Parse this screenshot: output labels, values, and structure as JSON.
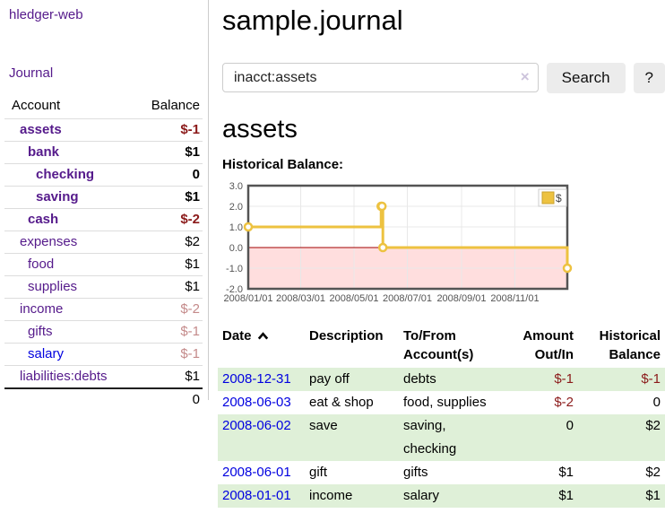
{
  "app": {
    "brand": "hledger-web",
    "nav_journal": "Journal"
  },
  "sidebar": {
    "columns": {
      "account": "Account",
      "balance": "Balance"
    },
    "accounts": [
      {
        "name": "assets",
        "balance": "$-1",
        "indent": 1,
        "bold": true,
        "negative": true,
        "dimmed": false
      },
      {
        "name": "bank",
        "balance": "$1",
        "indent": 2,
        "bold": true,
        "negative": false,
        "dimmed": false
      },
      {
        "name": "checking",
        "balance": "0",
        "indent": 3,
        "bold": true,
        "negative": false,
        "dimmed": false
      },
      {
        "name": "saving",
        "balance": "$1",
        "indent": 3,
        "bold": true,
        "negative": false,
        "dimmed": false
      },
      {
        "name": "cash",
        "balance": "$-2",
        "indent": 2,
        "bold": true,
        "negative": true,
        "dimmed": false
      },
      {
        "name": "expenses",
        "balance": "$2",
        "indent": 1,
        "bold": false,
        "negative": false,
        "dimmed": false
      },
      {
        "name": "food",
        "balance": "$1",
        "indent": 2,
        "bold": false,
        "negative": false,
        "dimmed": false
      },
      {
        "name": "supplies",
        "balance": "$1",
        "indent": 2,
        "bold": false,
        "negative": false,
        "dimmed": false
      },
      {
        "name": "income",
        "balance": "$-2",
        "indent": 1,
        "bold": false,
        "negative": true,
        "dimmed": true
      },
      {
        "name": "gifts",
        "balance": "$-1",
        "indent": 2,
        "bold": false,
        "negative": true,
        "dimmed": true
      },
      {
        "name": "salary",
        "balance": "$-1",
        "indent": 2,
        "bold": false,
        "negative": true,
        "dimmed": true
      },
      {
        "name": "liabilities:debts",
        "balance": "$1",
        "indent": 1,
        "bold": false,
        "negative": false,
        "dimmed": false
      }
    ],
    "total": "0"
  },
  "header": {
    "title": "sample.journal"
  },
  "search": {
    "value": "inacct:assets",
    "clear_label": "×",
    "button": "Search",
    "help_button": "?"
  },
  "account_page": {
    "heading": "assets",
    "chart_title": "Historical Balance:"
  },
  "chart_data": {
    "type": "line",
    "title": "Historical Balance:",
    "step": true,
    "series": [
      {
        "name": "$",
        "color": "#edc240",
        "points": [
          [
            "2008-01-01",
            1
          ],
          [
            "2008-06-01",
            2
          ],
          [
            "2008-06-02",
            2
          ],
          [
            "2008-06-03",
            0
          ],
          [
            "2008-12-31",
            -1
          ]
        ]
      }
    ],
    "x_range": [
      "2008-01-01",
      "2008-12-31"
    ],
    "x_tick_dates": [
      "2008-01-01",
      "2008-03-01",
      "2008-05-01",
      "2008-07-01",
      "2008-09-01",
      "2008-11-01"
    ],
    "x_ticks": [
      "2008/01/01",
      "2008/03/01",
      "2008/05/01",
      "2008/07/01",
      "2008/09/01",
      "2008/11/01"
    ],
    "y_ticks": [
      3.0,
      2.0,
      1.0,
      0.0,
      -1.0,
      -2.0
    ],
    "ylim": [
      -2,
      3
    ],
    "grid": true,
    "negative_region_fill": "#ffdede",
    "zero_line_color": "#a00000",
    "legend": {
      "label": "$",
      "position": "top-right"
    }
  },
  "register": {
    "columns": [
      "Date",
      "Description",
      "To/From Account(s)",
      "Amount Out/In",
      "Historical Balance"
    ],
    "rows": [
      {
        "date": "2008-12-31",
        "description": "pay off",
        "accounts": "debts",
        "amount": "$-1",
        "balance": "$-1"
      },
      {
        "date": "2008-06-03",
        "description": "eat & shop",
        "accounts": "food, supplies",
        "amount": "$-2",
        "balance": "0"
      },
      {
        "date": "2008-06-02",
        "description": "save",
        "accounts": "saving, checking",
        "amount": "0",
        "balance": "$2"
      },
      {
        "date": "2008-06-01",
        "description": "gift",
        "accounts": "gifts",
        "amount": "$1",
        "balance": "$2"
      },
      {
        "date": "2008-01-01",
        "description": "income",
        "accounts": "salary",
        "amount": "$1",
        "balance": "$1"
      }
    ]
  },
  "colors": {
    "link_purple": "#551a8b",
    "link_blue": "#0000e0",
    "negative_red": "#8b1a1a",
    "dimmed_negative_red": "#c48a8a",
    "row_stripe_green": "#dff0d8",
    "series_gold": "#edc240",
    "negative_region_pink": "#ffdede",
    "zero_line_red": "#a00000",
    "chart_border_gray": "#545454"
  }
}
